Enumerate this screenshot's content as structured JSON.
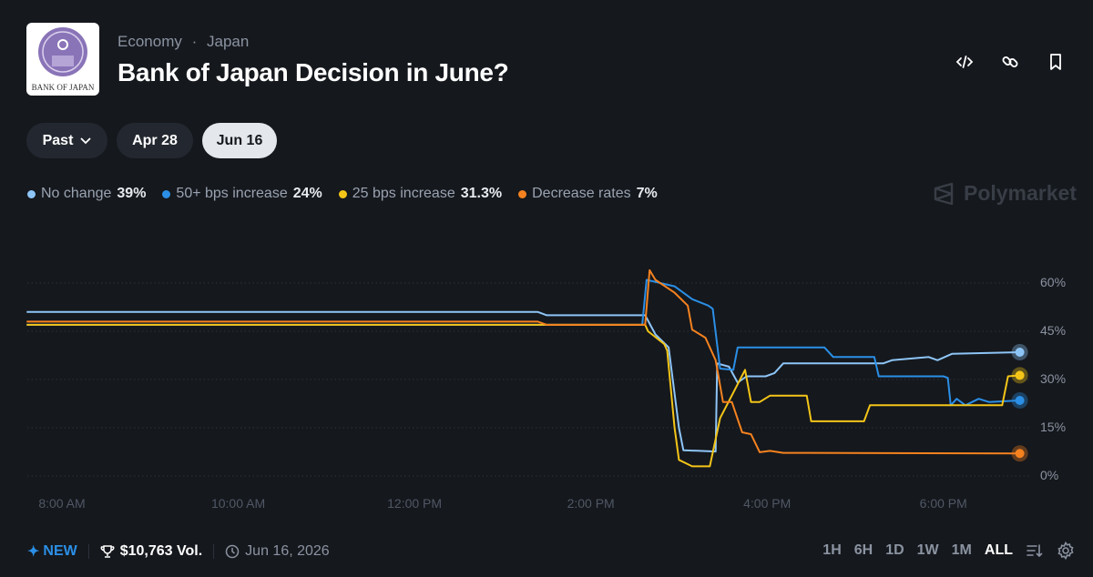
{
  "header": {
    "category": "Economy",
    "subcategory": "Japan",
    "separator": "·",
    "title": "Bank of Japan Decision in June?",
    "logo_text": "BANK OF JAPAN"
  },
  "actions": [
    {
      "icon": "code-icon"
    },
    {
      "icon": "link-icon"
    },
    {
      "icon": "bookmark-icon"
    }
  ],
  "date_tabs": [
    {
      "label": "Past",
      "has_dropdown": true
    },
    {
      "label": "Apr 28"
    },
    {
      "label": "Jun 16",
      "active": true
    }
  ],
  "legend": [
    {
      "label": "No change",
      "value": "39%",
      "color": "#8ec5f7"
    },
    {
      "label": "50+ bps increase",
      "value": "24%",
      "color": "#2b8fe6"
    },
    {
      "label": "25 bps increase",
      "value": "31.3%",
      "color": "#f4c518"
    },
    {
      "label": "Decrease rates",
      "value": "7%",
      "color": "#f5821f"
    }
  ],
  "brand": "Polymarket",
  "footer": {
    "new_label": "NEW",
    "volume": "$10,763 Vol.",
    "date": "Jun 16, 2026"
  },
  "ranges": [
    "1H",
    "6H",
    "1D",
    "1W",
    "1M",
    "ALL"
  ],
  "active_range": "ALL",
  "chart_data": {
    "type": "line",
    "y_ticks": [
      "0%",
      "15%",
      "30%",
      "45%",
      "60%"
    ],
    "y_tick_values": [
      0,
      15,
      30,
      45,
      60
    ],
    "x_ticks": [
      "8:00 AM",
      "10:00 AM",
      "12:00 PM",
      "2:00 PM",
      "4:00 PM",
      "6:00 PM"
    ],
    "x_tick_times": [
      "08:00",
      "10:00",
      "12:00",
      "14:00",
      "16:00",
      "18:00"
    ],
    "grid": true,
    "series": [
      {
        "name": "No change",
        "color": "#8ec5f7",
        "points": [
          [
            "07:36",
            51
          ],
          [
            "13:24",
            51
          ],
          [
            "13:30",
            50
          ],
          [
            "14:37",
            50
          ],
          [
            "14:44",
            44
          ],
          [
            "14:53",
            40
          ],
          [
            "15:00",
            15
          ],
          [
            "15:03",
            8
          ],
          [
            "15:25",
            7.6
          ],
          [
            "15:26",
            35
          ],
          [
            "15:34",
            34
          ],
          [
            "15:40",
            29
          ],
          [
            "15:46",
            31
          ],
          [
            "15:59",
            31
          ],
          [
            "16:05",
            32
          ],
          [
            "16:11",
            35
          ],
          [
            "16:23",
            35
          ],
          [
            "17:19",
            35
          ],
          [
            "17:25",
            36
          ],
          [
            "17:50",
            37
          ],
          [
            "17:56",
            36
          ],
          [
            "18:06",
            38
          ],
          [
            "18:52",
            38.5
          ]
        ]
      },
      {
        "name": "50+ bps increase",
        "color": "#2b8fe6",
        "points": [
          [
            "07:36",
            47
          ],
          [
            "14:35",
            47
          ],
          [
            "14:38",
            61
          ],
          [
            "14:57",
            59
          ],
          [
            "15:09",
            55
          ],
          [
            "15:20",
            53
          ],
          [
            "15:23",
            52
          ],
          [
            "15:28",
            33.4
          ],
          [
            "15:37",
            33
          ],
          [
            "15:40",
            40
          ],
          [
            "16:39",
            40
          ],
          [
            "16:45",
            37
          ],
          [
            "17:13",
            37
          ],
          [
            "17:16",
            31
          ],
          [
            "18:00",
            31
          ],
          [
            "18:03",
            30.5
          ],
          [
            "18:05",
            22
          ],
          [
            "18:09",
            24
          ],
          [
            "18:15",
            22
          ],
          [
            "18:24",
            24
          ],
          [
            "18:31",
            23
          ],
          [
            "18:52",
            23.5
          ]
        ]
      },
      {
        "name": "25 bps increase",
        "color": "#f4c518",
        "points": [
          [
            "07:36",
            47
          ],
          [
            "14:37",
            47
          ],
          [
            "14:39",
            45
          ],
          [
            "14:50",
            41
          ],
          [
            "14:52",
            39
          ],
          [
            "14:57",
            15
          ],
          [
            "15:00",
            5
          ],
          [
            "15:09",
            3
          ],
          [
            "15:21",
            3
          ],
          [
            "15:28",
            18
          ],
          [
            "15:45",
            33
          ],
          [
            "15:49",
            23
          ],
          [
            "15:55",
            23
          ],
          [
            "16:02",
            25
          ],
          [
            "16:27",
            25
          ],
          [
            "16:30",
            17
          ],
          [
            "17:06",
            17
          ],
          [
            "17:10",
            22
          ],
          [
            "18:40",
            22
          ],
          [
            "18:44",
            31
          ],
          [
            "18:52",
            31.3
          ]
        ]
      },
      {
        "name": "Decrease rates",
        "color": "#f5821f",
        "points": [
          [
            "07:36",
            48
          ],
          [
            "13:24",
            48
          ],
          [
            "13:30",
            47
          ],
          [
            "14:37",
            47
          ],
          [
            "14:40",
            64
          ],
          [
            "14:44",
            61
          ],
          [
            "14:57",
            57
          ],
          [
            "15:06",
            53
          ],
          [
            "15:09",
            45.5
          ],
          [
            "15:18",
            43
          ],
          [
            "15:25",
            36
          ],
          [
            "15:30",
            23
          ],
          [
            "15:36",
            23
          ],
          [
            "15:43",
            13.6
          ],
          [
            "15:49",
            13
          ],
          [
            "15:55",
            7.4
          ],
          [
            "16:02",
            7.8
          ],
          [
            "16:11",
            7.2
          ],
          [
            "18:52",
            7
          ]
        ]
      }
    ]
  }
}
